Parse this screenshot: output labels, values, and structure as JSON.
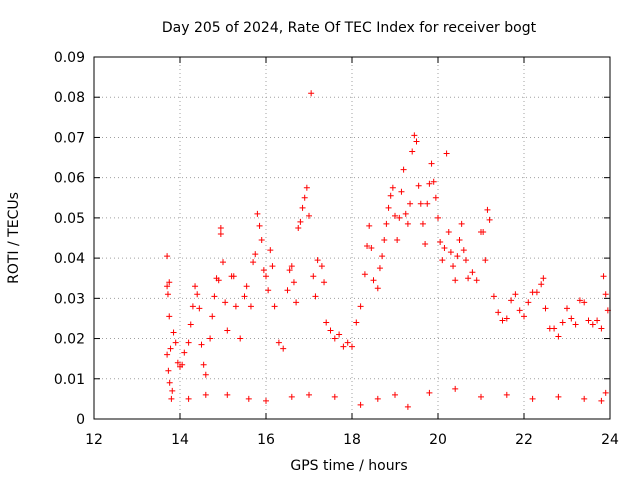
{
  "chart_data": {
    "type": "scatter",
    "title": "Day 205 of 2024, Rate Of TEC Index for receiver bogt",
    "xlabel": "GPS time / hours",
    "ylabel": "ROTI / TECUs",
    "xlim": [
      12,
      24
    ],
    "ylim": [
      0,
      0.09
    ],
    "xticks": [
      "12",
      "14",
      "16",
      "18",
      "20",
      "22",
      "24"
    ],
    "yticks": [
      "0",
      "0.01",
      "0.02",
      "0.03",
      "0.04",
      "0.05",
      "0.06",
      "0.07",
      "0.08",
      "0.09"
    ],
    "grid": true,
    "marker": "+",
    "color": "#ff0000",
    "series": [
      {
        "points": [
          [
            13.7,
            0.0405
          ],
          [
            13.7,
            0.033
          ],
          [
            13.72,
            0.031
          ],
          [
            13.75,
            0.034
          ],
          [
            13.75,
            0.0255
          ],
          [
            13.78,
            0.0175
          ],
          [
            13.7,
            0.016
          ],
          [
            13.73,
            0.012
          ],
          [
            13.76,
            0.009
          ],
          [
            13.8,
            0.005
          ],
          [
            13.82,
            0.007
          ],
          [
            13.85,
            0.0215
          ],
          [
            13.9,
            0.019
          ],
          [
            13.95,
            0.014
          ],
          [
            14.0,
            0.013
          ],
          [
            14.05,
            0.0135
          ],
          [
            14.1,
            0.0165
          ],
          [
            14.2,
            0.019
          ],
          [
            14.25,
            0.0235
          ],
          [
            14.3,
            0.028
          ],
          [
            14.35,
            0.033
          ],
          [
            14.4,
            0.031
          ],
          [
            14.45,
            0.0275
          ],
          [
            14.5,
            0.0185
          ],
          [
            14.55,
            0.0135
          ],
          [
            14.6,
            0.011
          ],
          [
            14.7,
            0.02
          ],
          [
            14.75,
            0.0255
          ],
          [
            14.8,
            0.0305
          ],
          [
            14.85,
            0.035
          ],
          [
            14.9,
            0.0345
          ],
          [
            14.95,
            0.0475
          ],
          [
            14.95,
            0.046
          ],
          [
            15.0,
            0.039
          ],
          [
            15.05,
            0.029
          ],
          [
            15.1,
            0.022
          ],
          [
            15.2,
            0.0355
          ],
          [
            15.25,
            0.0355
          ],
          [
            15.3,
            0.028
          ],
          [
            15.4,
            0.02
          ],
          [
            15.5,
            0.0305
          ],
          [
            15.55,
            0.033
          ],
          [
            15.65,
            0.028
          ],
          [
            15.7,
            0.039
          ],
          [
            15.75,
            0.041
          ],
          [
            15.8,
            0.051
          ],
          [
            15.85,
            0.048
          ],
          [
            15.9,
            0.0445
          ],
          [
            15.95,
            0.037
          ],
          [
            16.0,
            0.0355
          ],
          [
            16.05,
            0.032
          ],
          [
            16.1,
            0.042
          ],
          [
            16.15,
            0.038
          ],
          [
            16.2,
            0.028
          ],
          [
            16.3,
            0.019
          ],
          [
            16.4,
            0.0175
          ],
          [
            16.5,
            0.032
          ],
          [
            16.55,
            0.037
          ],
          [
            16.6,
            0.038
          ],
          [
            16.65,
            0.034
          ],
          [
            16.7,
            0.029
          ],
          [
            16.75,
            0.0475
          ],
          [
            16.8,
            0.049
          ],
          [
            16.85,
            0.0525
          ],
          [
            16.9,
            0.055
          ],
          [
            16.95,
            0.0575
          ],
          [
            17.0,
            0.0505
          ],
          [
            17.05,
            0.081
          ],
          [
            17.1,
            0.0355
          ],
          [
            17.15,
            0.0305
          ],
          [
            17.2,
            0.0395
          ],
          [
            17.3,
            0.038
          ],
          [
            17.35,
            0.034
          ],
          [
            17.4,
            0.024
          ],
          [
            17.5,
            0.022
          ],
          [
            17.6,
            0.02
          ],
          [
            17.7,
            0.021
          ],
          [
            17.8,
            0.018
          ],
          [
            17.9,
            0.019
          ],
          [
            18.0,
            0.018
          ],
          [
            18.1,
            0.024
          ],
          [
            18.2,
            0.028
          ],
          [
            18.3,
            0.036
          ],
          [
            18.35,
            0.043
          ],
          [
            18.4,
            0.048
          ],
          [
            18.45,
            0.0425
          ],
          [
            18.5,
            0.0345
          ],
          [
            18.6,
            0.0325
          ],
          [
            18.65,
            0.0375
          ],
          [
            18.7,
            0.0405
          ],
          [
            18.75,
            0.0445
          ],
          [
            18.8,
            0.0485
          ],
          [
            18.85,
            0.0525
          ],
          [
            18.9,
            0.0555
          ],
          [
            18.95,
            0.0575
          ],
          [
            19.0,
            0.0505
          ],
          [
            19.05,
            0.0445
          ],
          [
            19.1,
            0.05
          ],
          [
            19.15,
            0.0565
          ],
          [
            19.2,
            0.062
          ],
          [
            19.25,
            0.051
          ],
          [
            19.3,
            0.0485
          ],
          [
            19.35,
            0.0535
          ],
          [
            19.4,
            0.0665
          ],
          [
            19.45,
            0.0705
          ],
          [
            19.5,
            0.069
          ],
          [
            19.55,
            0.058
          ],
          [
            19.6,
            0.0535
          ],
          [
            19.65,
            0.0485
          ],
          [
            19.7,
            0.0435
          ],
          [
            19.75,
            0.0535
          ],
          [
            19.8,
            0.0585
          ],
          [
            19.85,
            0.0635
          ],
          [
            19.9,
            0.059
          ],
          [
            19.95,
            0.055
          ],
          [
            20.0,
            0.05
          ],
          [
            20.05,
            0.044
          ],
          [
            20.1,
            0.0395
          ],
          [
            20.15,
            0.0425
          ],
          [
            20.2,
            0.066
          ],
          [
            20.25,
            0.0465
          ],
          [
            20.3,
            0.0415
          ],
          [
            20.35,
            0.038
          ],
          [
            20.4,
            0.0345
          ],
          [
            20.45,
            0.0405
          ],
          [
            20.5,
            0.0445
          ],
          [
            20.55,
            0.0485
          ],
          [
            20.6,
            0.042
          ],
          [
            20.65,
            0.0395
          ],
          [
            20.7,
            0.035
          ],
          [
            20.8,
            0.0365
          ],
          [
            20.9,
            0.0345
          ],
          [
            21.0,
            0.0465
          ],
          [
            21.05,
            0.0465
          ],
          [
            21.1,
            0.0395
          ],
          [
            21.15,
            0.052
          ],
          [
            21.2,
            0.0495
          ],
          [
            21.3,
            0.0305
          ],
          [
            21.4,
            0.0265
          ],
          [
            21.5,
            0.0245
          ],
          [
            21.6,
            0.025
          ],
          [
            21.7,
            0.0295
          ],
          [
            21.8,
            0.031
          ],
          [
            21.9,
            0.027
          ],
          [
            22.0,
            0.0255
          ],
          [
            22.1,
            0.029
          ],
          [
            22.2,
            0.0315
          ],
          [
            22.3,
            0.0315
          ],
          [
            22.4,
            0.0335
          ],
          [
            22.45,
            0.035
          ],
          [
            22.5,
            0.0275
          ],
          [
            22.6,
            0.0225
          ],
          [
            22.7,
            0.0225
          ],
          [
            22.8,
            0.0205
          ],
          [
            22.9,
            0.024
          ],
          [
            23.0,
            0.0275
          ],
          [
            23.1,
            0.025
          ],
          [
            23.2,
            0.0235
          ],
          [
            23.3,
            0.0295
          ],
          [
            23.4,
            0.029
          ],
          [
            23.5,
            0.0245
          ],
          [
            23.6,
            0.0235
          ],
          [
            23.7,
            0.0245
          ],
          [
            23.8,
            0.0225
          ],
          [
            23.85,
            0.0355
          ],
          [
            23.9,
            0.031
          ],
          [
            23.95,
            0.027
          ],
          [
            14.2,
            0.005
          ],
          [
            14.6,
            0.006
          ],
          [
            15.1,
            0.006
          ],
          [
            15.6,
            0.005
          ],
          [
            16.0,
            0.0045
          ],
          [
            16.6,
            0.0055
          ],
          [
            17.0,
            0.006
          ],
          [
            17.6,
            0.0055
          ],
          [
            18.2,
            0.0035
          ],
          [
            18.6,
            0.005
          ],
          [
            19.0,
            0.006
          ],
          [
            19.3,
            0.003
          ],
          [
            19.8,
            0.0065
          ],
          [
            20.4,
            0.0075
          ],
          [
            21.0,
            0.0055
          ],
          [
            21.6,
            0.006
          ],
          [
            22.2,
            0.005
          ],
          [
            22.8,
            0.0055
          ],
          [
            23.4,
            0.005
          ],
          [
            23.8,
            0.0045
          ],
          [
            23.9,
            0.0065
          ]
        ]
      }
    ]
  }
}
